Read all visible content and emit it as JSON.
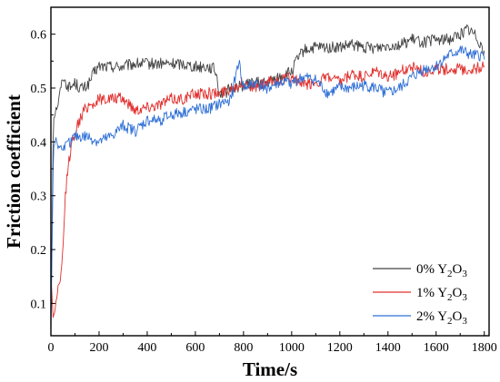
{
  "chart_data": {
    "type": "line",
    "xlabel": "Time/s",
    "ylabel": "Friction coefficient",
    "xlim": [
      0,
      1820
    ],
    "ylim": [
      0.04,
      0.65
    ],
    "xticks": [
      0,
      200,
      400,
      600,
      800,
      1000,
      1200,
      1400,
      1600,
      1800
    ],
    "yticks": [
      0.1,
      0.2,
      0.3,
      0.4,
      0.5,
      0.6
    ],
    "xtick_labels": [
      "0",
      "200",
      "400",
      "600",
      "800",
      "1000",
      "1200",
      "1400",
      "1600",
      "1800"
    ],
    "ytick_labels": [
      "0.1",
      "0.2",
      "0.3",
      "0.4",
      "0.5",
      "0.6"
    ],
    "legend_position": "bottom-right",
    "series": [
      {
        "name": "0% Y2O3",
        "legend": {
          "pre": "0% Y",
          "sub1": "2",
          "mid": "O",
          "sub2": "3"
        },
        "color": "#444444",
        "x": [
          0,
          10,
          20,
          30,
          40,
          50,
          60,
          80,
          100,
          120,
          140,
          160,
          180,
          200,
          220,
          260,
          300,
          350,
          400,
          450,
          500,
          550,
          600,
          650,
          680,
          690,
          700,
          720,
          750,
          800,
          850,
          900,
          950,
          1000,
          1020,
          1050,
          1100,
          1150,
          1200,
          1250,
          1300,
          1350,
          1400,
          1450,
          1500,
          1550,
          1600,
          1650,
          1700,
          1730,
          1760,
          1790,
          1800
        ],
        "y": [
          0.06,
          0.44,
          0.46,
          0.47,
          0.5,
          0.52,
          0.51,
          0.5,
          0.51,
          0.5,
          0.5,
          0.51,
          0.53,
          0.54,
          0.54,
          0.54,
          0.54,
          0.545,
          0.545,
          0.545,
          0.545,
          0.545,
          0.54,
          0.54,
          0.535,
          0.52,
          0.49,
          0.49,
          0.5,
          0.505,
          0.51,
          0.51,
          0.52,
          0.53,
          0.55,
          0.57,
          0.575,
          0.575,
          0.575,
          0.58,
          0.575,
          0.575,
          0.58,
          0.58,
          0.59,
          0.585,
          0.59,
          0.59,
          0.6,
          0.61,
          0.6,
          0.58,
          0.56
        ]
      },
      {
        "name": "1% Y2O3",
        "legend": {
          "pre": "1% Y",
          "sub1": "2",
          "mid": "O",
          "sub2": "3"
        },
        "color": "#e0302e",
        "x": [
          0,
          10,
          20,
          30,
          40,
          50,
          60,
          70,
          80,
          90,
          100,
          120,
          140,
          160,
          180,
          200,
          250,
          300,
          350,
          400,
          450,
          500,
          550,
          600,
          650,
          700,
          750,
          800,
          850,
          900,
          950,
          1000,
          1050,
          1100,
          1150,
          1200,
          1250,
          1300,
          1350,
          1400,
          1450,
          1500,
          1550,
          1600,
          1650,
          1700,
          1750,
          1800
        ],
        "y": [
          0.15,
          0.07,
          0.1,
          0.13,
          0.14,
          0.2,
          0.3,
          0.35,
          0.38,
          0.4,
          0.42,
          0.44,
          0.46,
          0.47,
          0.47,
          0.48,
          0.48,
          0.48,
          0.46,
          0.465,
          0.47,
          0.48,
          0.48,
          0.49,
          0.49,
          0.49,
          0.5,
          0.51,
          0.5,
          0.51,
          0.515,
          0.52,
          0.505,
          0.51,
          0.52,
          0.51,
          0.525,
          0.52,
          0.53,
          0.52,
          0.53,
          0.54,
          0.53,
          0.535,
          0.535,
          0.535,
          0.535,
          0.54
        ]
      },
      {
        "name": "2% Y2O3",
        "legend": {
          "pre": "2% Y",
          "sub1": "2",
          "mid": "O",
          "sub2": "3"
        },
        "color": "#2f6fd6",
        "x": [
          0,
          10,
          20,
          30,
          40,
          60,
          80,
          100,
          150,
          200,
          250,
          300,
          350,
          400,
          450,
          500,
          550,
          600,
          650,
          700,
          750,
          770,
          780,
          800,
          850,
          900,
          950,
          1000,
          1050,
          1100,
          1150,
          1200,
          1250,
          1300,
          1350,
          1400,
          1450,
          1500,
          1550,
          1600,
          1650,
          1700,
          1750,
          1800
        ],
        "y": [
          0.05,
          0.38,
          0.41,
          0.39,
          0.39,
          0.39,
          0.4,
          0.41,
          0.41,
          0.4,
          0.41,
          0.43,
          0.42,
          0.44,
          0.44,
          0.45,
          0.455,
          0.46,
          0.46,
          0.47,
          0.48,
          0.53,
          0.55,
          0.5,
          0.51,
          0.5,
          0.51,
          0.51,
          0.52,
          0.515,
          0.49,
          0.5,
          0.5,
          0.505,
          0.5,
          0.49,
          0.5,
          0.52,
          0.535,
          0.54,
          0.56,
          0.57,
          0.56,
          0.56
        ]
      }
    ]
  }
}
